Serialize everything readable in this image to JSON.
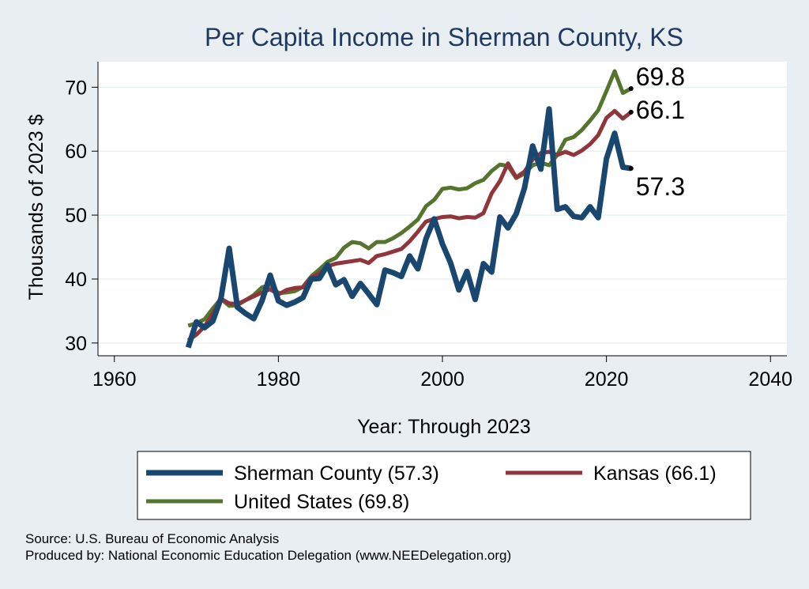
{
  "chart_data": {
    "type": "line",
    "title": "Per Capita Income in Sherman County, KS",
    "xlabel": "Year: Through 2023",
    "ylabel": "Thousands of 2023 $",
    "xlim": [
      1958,
      2042
    ],
    "ylim": [
      28,
      74
    ],
    "xticks": [
      1960,
      1980,
      2000,
      2020,
      2040
    ],
    "yticks": [
      30,
      40,
      50,
      60,
      70
    ],
    "grid": true,
    "legend_position": "bottom",
    "x": [
      1969,
      1970,
      1971,
      1972,
      1973,
      1974,
      1975,
      1976,
      1977,
      1978,
      1979,
      1980,
      1981,
      1982,
      1983,
      1984,
      1985,
      1986,
      1987,
      1988,
      1989,
      1990,
      1991,
      1992,
      1993,
      1994,
      1995,
      1996,
      1997,
      1998,
      1999,
      2000,
      2001,
      2002,
      2003,
      2004,
      2005,
      2006,
      2007,
      2008,
      2009,
      2010,
      2011,
      2012,
      2013,
      2014,
      2015,
      2016,
      2017,
      2018,
      2019,
      2020,
      2021,
      2022,
      2023
    ],
    "series": [
      {
        "name": "Sherman County",
        "legend_label": "Sherman County (57.3)",
        "end_label": "57.3",
        "color": "#1a476f",
        "width": 7,
        "values": [
          29.3,
          33.3,
          32.4,
          33.4,
          37.0,
          44.8,
          35.6,
          34.6,
          33.8,
          36.6,
          40.6,
          36.6,
          35.9,
          36.4,
          37.1,
          40.0,
          40.1,
          42.2,
          39.1,
          39.9,
          37.3,
          39.3,
          37.7,
          36.0,
          41.4,
          41.0,
          40.4,
          43.6,
          41.6,
          46.3,
          49.4,
          45.5,
          42.5,
          38.3,
          41.2,
          36.8,
          42.4,
          41.1,
          49.7,
          48.0,
          50.2,
          54.2,
          60.8,
          57.2,
          66.6,
          50.9,
          51.3,
          49.8,
          49.6,
          51.3,
          49.6,
          58.8,
          62.8,
          57.5,
          57.3
        ]
      },
      {
        "name": "Kansas",
        "legend_label": "Kansas (66.1)",
        "end_label": "66.1",
        "color": "#90353b",
        "width": 5,
        "values": [
          30.4,
          31.3,
          32.6,
          34.6,
          36.9,
          36.2,
          36.1,
          36.7,
          37.3,
          37.9,
          38.4,
          37.6,
          38.3,
          38.6,
          38.7,
          40.2,
          40.9,
          42.0,
          42.4,
          42.6,
          42.8,
          43.0,
          42.5,
          43.6,
          43.9,
          44.3,
          44.7,
          45.9,
          47.4,
          49.0,
          49.4,
          49.7,
          49.8,
          49.5,
          49.7,
          49.6,
          50.3,
          53.4,
          55.3,
          58.1,
          55.9,
          56.8,
          58.7,
          59.7,
          59.9,
          59.4,
          59.9,
          59.4,
          60.1,
          61.1,
          62.5,
          65.2,
          66.3,
          65.1,
          66.1
        ]
      },
      {
        "name": "United States",
        "legend_label": "United States (69.8)",
        "end_label": "69.8",
        "color": "#55752f",
        "width": 5,
        "values": [
          32.7,
          33.1,
          33.7,
          35.4,
          36.9,
          35.8,
          35.9,
          36.7,
          37.5,
          38.7,
          39.1,
          37.8,
          37.9,
          38.1,
          38.8,
          40.4,
          41.5,
          42.7,
          43.3,
          44.9,
          45.8,
          45.6,
          44.8,
          45.8,
          45.8,
          46.4,
          47.2,
          48.2,
          49.3,
          51.4,
          52.4,
          54.1,
          54.3,
          54.0,
          54.2,
          55.0,
          55.5,
          56.9,
          57.9,
          57.7,
          55.8,
          56.5,
          57.8,
          58.2,
          57.8,
          59.4,
          61.8,
          62.2,
          63.3,
          64.8,
          66.4,
          69.4,
          72.5,
          69.1,
          69.8
        ]
      }
    ]
  },
  "footer": {
    "source": "Source: U.S. Bureau of Economic Analysis",
    "produced_by": "Produced by: National Economic Education Delegation (www.NEEDelegation.org)"
  }
}
